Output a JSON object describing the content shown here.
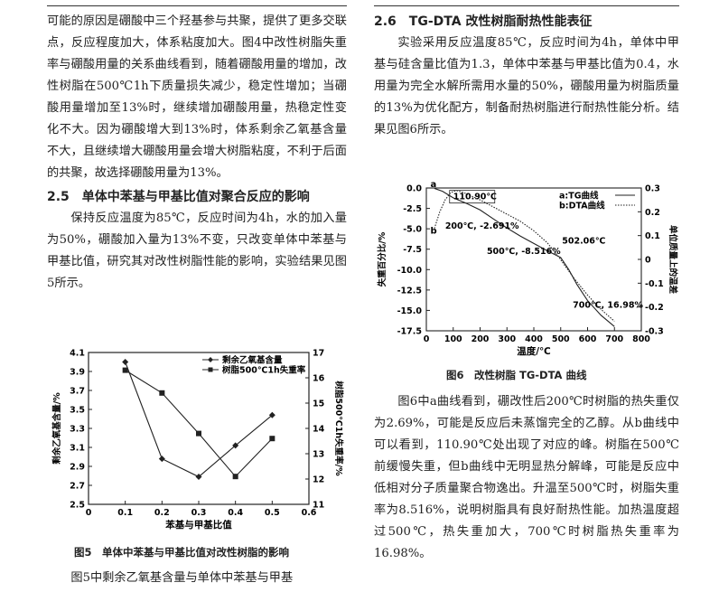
{
  "left_col": {
    "para1": "可能的原因是硼酸中三个羟基参与共聚，提供了更多交联点，反应程度加大，体系粘度加大。图4中改性树脂失重率与硼酸用量的关系曲线看到，随着硼酸用量的增加，改性树脂在500℃1h下质量损失减少，稳定性增加；当硼酸用量增加至13%时，继续增加硼酸用量，热稳定性变化不大。因为硼酸增大到13%时，体系剩余乙氧基含量不大，且继续增大硼酸用量会增大树脂粘度，不利于后面的共聚，故选择硼酸用量为13%。",
    "section_25": "2.5　单体中苯基与甲基比值对聚合反应的影响",
    "para2": "保持反应温度为85℃，反应时间为4h，水的加入量为50%，硼酸加入量为13%不变，只改变单体中苯基与甲基比值，研究其对改性树脂性能的影响，实验结果见图5所示。",
    "fig5_caption": "图5　单体中苯基与甲基比值对改性树脂的影响",
    "para3": "图5中剩余乙氧基含量与单体中苯基与甲基"
  },
  "right_col": {
    "section_26": "2.6　TG-DTA 改性树脂耐热性能表征",
    "para1": "实验采用反应温度85℃，反应时间为4h，单体中甲基与硅含量比值为1.3，单体中苯基与甲基比值为0.4，水用量为完全水解所需用水量的50%，硼酸用量为树脂质量的13%为优化配方，制备耐热树脂进行耐热性能分析。结果见图6所示。",
    "fig6_caption": "图6　改性树脂 TG-DTA 曲线",
    "para2": "图6中a曲线看到，硼改性后200℃时树脂的热失重仅为2.69%，可能是反应后未蒸馏完全的乙醇。从b曲线中可以看到，110.90℃处出现了对应的峰。树脂在500℃前缓慢失重，但b曲线中无明显热分解峰，可能是反应中低相对分子质量聚合物逸出。升温至500℃时，树脂失重率为8.516%，说明树脂具有良好耐热性能。加热温度超过500℃，热失重加大，700℃时树脂热失重率为16.98%。"
  },
  "chart_data": [
    {
      "type": "line",
      "xlabel": "苯基与甲基比值",
      "ylabel": "剩余乙氧基含量/%",
      "y2label": "树脂500℃1h失重率/%",
      "xlim": [
        0,
        0.6
      ],
      "ylim": [
        2.5,
        4.1
      ],
      "y2lim": [
        11,
        17
      ],
      "x_ticks": [
        "0",
        "0.1",
        "0.2",
        "0.3",
        "0.4",
        "0.5",
        "0.6"
      ],
      "y_ticks": [
        "2.5",
        "2.7",
        "2.9",
        "3.1",
        "3.3",
        "3.5",
        "3.7",
        "3.9",
        "4.1"
      ],
      "y2_ticks": [
        "11",
        "12",
        "13",
        "14",
        "15",
        "16",
        "17"
      ],
      "legend_position": "top-right",
      "series": [
        {
          "name": "剩余乙氧基含量",
          "axis": "left",
          "marker": "diamond",
          "x": [
            0.1,
            0.2,
            0.3,
            0.4,
            0.5
          ],
          "values": [
            4.0,
            2.98,
            2.79,
            3.12,
            3.44
          ]
        },
        {
          "name": "树脂500℃1h失重率",
          "axis": "right",
          "marker": "square",
          "x": [
            0.1,
            0.2,
            0.3,
            0.4,
            0.5
          ],
          "values": [
            16.3,
            15.4,
            13.8,
            12.1,
            13.6
          ]
        }
      ]
    },
    {
      "type": "line",
      "xlabel": "温度/℃",
      "ylabel": "失重百分比/%",
      "y2label": "单位质量上的温差",
      "xlim": [
        0,
        800
      ],
      "ylim": [
        -17.5,
        0.0
      ],
      "y2lim": [
        -0.3,
        0.3
      ],
      "x_ticks": [
        "0",
        "100",
        "200",
        "300",
        "400",
        "500",
        "600",
        "700",
        "800"
      ],
      "y_ticks": [
        "0.0",
        "-2.5",
        "-5.0",
        "-7.5",
        "-10.0",
        "-12.5",
        "-15.0",
        "-17.5"
      ],
      "y2_ticks": [
        "0.3",
        "0.2",
        "0.1",
        "0",
        "-0.1",
        "-0.2",
        "-0.3"
      ],
      "legend": [
        "a:TG曲线",
        "b:DTA曲线"
      ],
      "legend_position": "top-right",
      "annotations": [
        "110.90℃",
        "200℃, -2.691%",
        "502.06℃",
        "500℃, -8.516%",
        "700℃, 16.98%"
      ],
      "curve_labels": [
        "a",
        "b"
      ],
      "series": [
        {
          "name": "a:TG曲线",
          "axis": "left",
          "x": [
            30,
            60,
            100,
            150,
            200,
            250,
            300,
            350,
            400,
            450,
            500,
            530,
            560,
            600,
            650,
            700
          ],
          "values": [
            -0.05,
            -0.4,
            -1.2,
            -1.9,
            -2.69,
            -3.8,
            -4.9,
            -5.9,
            -6.8,
            -7.7,
            -8.516,
            -10.0,
            -11.8,
            -13.8,
            -15.6,
            -16.98
          ]
        },
        {
          "name": "b:DTA曲线",
          "axis": "right",
          "x": [
            30,
            50,
            70,
            90,
            110.9,
            140,
            180,
            200,
            250,
            300,
            350,
            400,
            450,
            500,
            502.06,
            550,
            600,
            650,
            700
          ],
          "values": [
            0.13,
            0.2,
            0.25,
            0.28,
            0.29,
            0.28,
            0.26,
            0.25,
            0.22,
            0.19,
            0.16,
            0.12,
            0.07,
            0.0,
            -0.005,
            -0.08,
            -0.15,
            -0.21,
            -0.26
          ]
        }
      ]
    }
  ]
}
